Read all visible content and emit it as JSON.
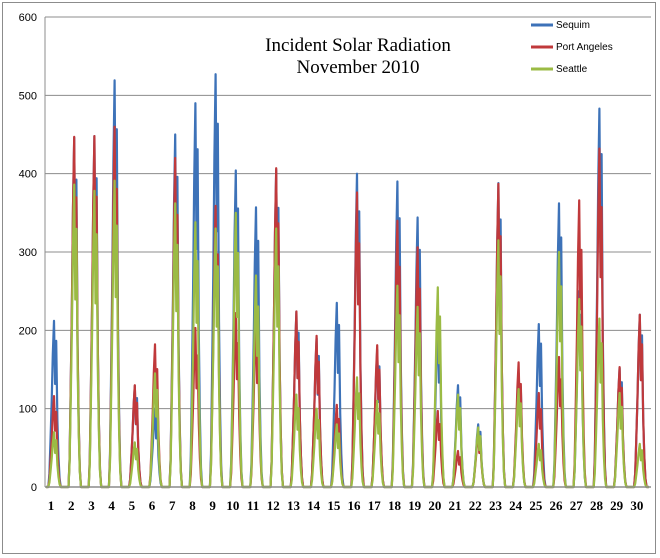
{
  "chart_data": {
    "type": "line",
    "title": "Incident Solar Radiation",
    "subtitle": "November 2010",
    "xlabel": "",
    "ylabel": "",
    "ylim": [
      0,
      600
    ],
    "yticks": [
      "0",
      "100",
      "200",
      "300",
      "400",
      "500",
      "600"
    ],
    "days": [
      "1",
      "2",
      "3",
      "4",
      "5",
      "6",
      "7",
      "8",
      "9",
      "10",
      "11",
      "12",
      "13",
      "14",
      "15",
      "16",
      "17",
      "18",
      "19",
      "20",
      "21",
      "22",
      "23",
      "24",
      "25",
      "26",
      "27",
      "28",
      "29",
      "30"
    ],
    "grid": true,
    "legend_position": "top-right",
    "series": [
      {
        "name": "Sequim",
        "color": "#3d72b8",
        "daily_peaks": [
          212,
          446,
          448,
          519,
          129,
          100,
          450,
          490,
          527,
          404,
          357,
          405,
          224,
          190,
          235,
          400,
          175,
          390,
          344,
          215,
          130,
          80,
          388,
          145,
          208,
          362,
          250,
          483,
          152,
          220
        ]
      },
      {
        "name": "Port Angeles",
        "color": "#c0393b",
        "daily_peaks": [
          116,
          447,
          448,
          460,
          130,
          182,
          420,
          203,
          359,
          222,
          214,
          407,
          224,
          193,
          105,
          376,
          181,
          340,
          306,
          97,
          46,
          70,
          387,
          159,
          120,
          166,
          366,
          432,
          153,
          220
        ]
      },
      {
        "name": "Seattle",
        "color": "#9bbb44",
        "daily_peaks": [
          70,
          386,
          378,
          391,
          57,
          145,
          362,
          338,
          330,
          350,
          270,
          330,
          118,
          100,
          80,
          140,
          110,
          257,
          230,
          255,
          118,
          76,
          315,
          125,
          55,
          300,
          240,
          215,
          120,
          55
        ]
      }
    ]
  }
}
